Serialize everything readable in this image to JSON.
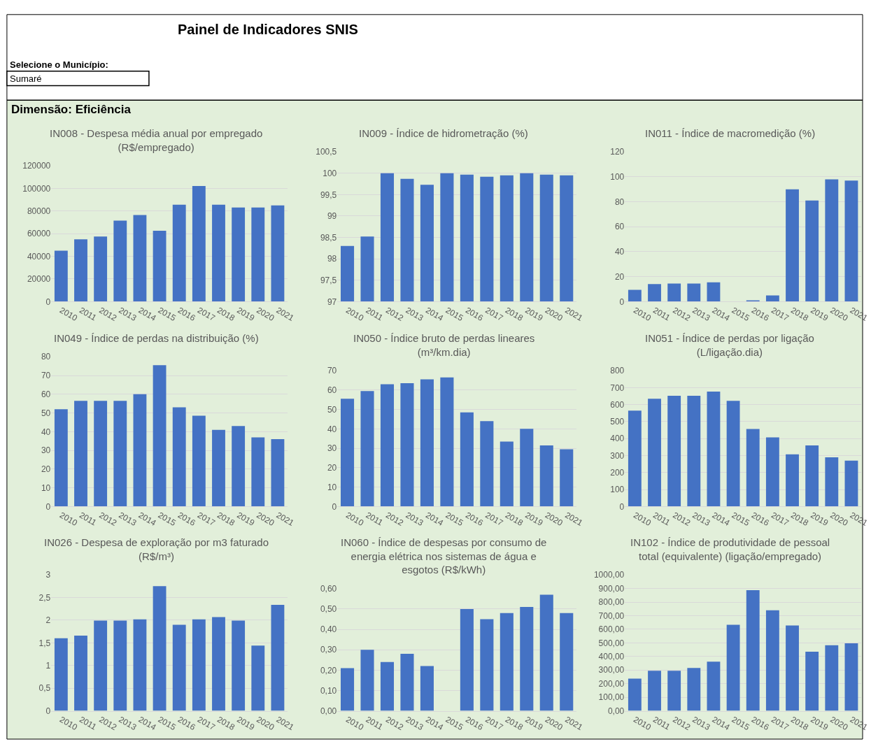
{
  "chart_data": [
    {
      "type": "other",
      "title": "Painel de Indicadores SNIS",
      "annotations": [
        "Selecione o Município:",
        "Sumaré",
        "Dimensão: Eficiência"
      ]
    },
    {
      "type": "bar",
      "title": "IN008 - Despesa média anual por empregado (R$/empregado)",
      "categories": [
        "2010",
        "2011",
        "2012",
        "2013",
        "2014",
        "2015",
        "2016",
        "2017",
        "2018",
        "2019",
        "2020",
        "2021"
      ],
      "color": "#4472c4",
      "values": [
        45000,
        55000,
        57500,
        71500,
        76500,
        62500,
        85500,
        102000,
        85500,
        83000,
        83000,
        85000
      ],
      "ylim": [
        0,
        120000
      ],
      "yticks": [
        0,
        20000,
        40000,
        60000,
        80000,
        100000,
        120000
      ],
      "grid": "y"
    },
    {
      "type": "bar",
      "title": "IN009 - Índice de hidrometração (%)",
      "categories": [
        "2010",
        "2011",
        "2012",
        "2013",
        "2014",
        "2015",
        "2016",
        "2017",
        "2018",
        "2019",
        "2020",
        "2021"
      ],
      "color": "#4472c4",
      "values": [
        98.3,
        98.52,
        100,
        99.87,
        99.73,
        100,
        99.97,
        99.92,
        99.95,
        100,
        99.97,
        99.95
      ],
      "ylim": [
        97,
        100.5
      ],
      "yticks": [
        97,
        {
          "value": 97.5,
          "label": "97,5"
        },
        98,
        {
          "value": 98.5,
          "label": "98,5"
        },
        99,
        {
          "value": 99.5,
          "label": "99,5"
        },
        100,
        {
          "value": 100.5,
          "label": "100,5"
        }
      ],
      "grid": "y"
    },
    {
      "type": "bar",
      "title": "IN011 - Índice de macromedição (%)",
      "categories": [
        "2010",
        "2011",
        "2012",
        "2013",
        "2014",
        "2015",
        "2016",
        "2017",
        "2018",
        "2019",
        "2020",
        "2021"
      ],
      "color": "#4472c4",
      "values": [
        9.5,
        14,
        14.5,
        14.5,
        15.5,
        null,
        1,
        5,
        90,
        81,
        98,
        97
      ],
      "ylim": [
        0,
        120
      ],
      "yticks": [
        0,
        20,
        40,
        60,
        80,
        100,
        120
      ],
      "grid": "y"
    },
    {
      "type": "bar",
      "title": "IN049 - Índice de perdas na distribuição (%)",
      "categories": [
        "2010",
        "2011",
        "2012",
        "2013",
        "2014",
        "2015",
        "2016",
        "2017",
        "2018",
        "2019",
        "2020",
        "2021"
      ],
      "color": "#4472c4",
      "values": [
        52,
        56.5,
        56.5,
        56.5,
        60,
        75.5,
        53,
        48.5,
        41,
        43,
        37,
        36
      ],
      "ylim": [
        0,
        80
      ],
      "yticks": [
        0,
        10,
        20,
        30,
        40,
        50,
        60,
        70,
        80
      ],
      "grid": "y"
    },
    {
      "type": "bar",
      "title": "IN050 - Índice bruto de perdas lineares (m³/km.dia)",
      "categories": [
        "2010",
        "2011",
        "2012",
        "2013",
        "2014",
        "2015",
        "2016",
        "2017",
        "2018",
        "2019",
        "2020",
        "2021"
      ],
      "color": "#4472c4",
      "values": [
        55.5,
        59.5,
        63,
        63.5,
        65.5,
        66.5,
        48.5,
        44,
        33.5,
        40,
        31.5,
        29.5
      ],
      "ylim": [
        0,
        70
      ],
      "yticks": [
        0,
        10,
        20,
        30,
        40,
        50,
        60,
        70
      ],
      "grid": "y"
    },
    {
      "type": "bar",
      "title": "IN051 - Índice de perdas por ligação (L/ligação.dia)",
      "categories": [
        "2010",
        "2011",
        "2012",
        "2013",
        "2014",
        "2015",
        "2016",
        "2017",
        "2018",
        "2019",
        "2020",
        "2021"
      ],
      "color": "#4472c4",
      "values": [
        565,
        635,
        652,
        652,
        677,
        622,
        457,
        407,
        307,
        360,
        290,
        270
      ],
      "ylim": [
        0,
        800
      ],
      "yticks": [
        0,
        100,
        200,
        300,
        400,
        500,
        600,
        700,
        800
      ],
      "grid": "y"
    },
    {
      "type": "bar",
      "title": "IN026 - Despesa de exploração por m3 faturado (R$/m³)",
      "categories": [
        "2010",
        "2011",
        "2012",
        "2013",
        "2014",
        "2015",
        "2016",
        "2017",
        "2018",
        "2019",
        "2020",
        "2021"
      ],
      "color": "#4472c4",
      "values": [
        1.6,
        1.66,
        1.99,
        1.99,
        2.02,
        2.75,
        1.9,
        2.02,
        2.07,
        1.99,
        1.44,
        2.34
      ],
      "ylim": [
        0,
        3
      ],
      "yticks": [
        0,
        {
          "value": 0.5,
          "label": "0,5"
        },
        1,
        {
          "value": 1.5,
          "label": "1,5"
        },
        2,
        {
          "value": 2.5,
          "label": "2,5"
        },
        3
      ],
      "grid": "y"
    },
    {
      "type": "bar",
      "title": "IN060 - Índice de despesas por consumo de energia elétrica nos sistemas de água e esgotos (R$/kWh)",
      "categories": [
        "2010",
        "2011",
        "2012",
        "2013",
        "2014",
        "2015",
        "2016",
        "2017",
        "2018",
        "2019",
        "2020",
        "2021"
      ],
      "color": "#4472c4",
      "values": [
        0.21,
        0.3,
        0.24,
        0.28,
        0.22,
        null,
        0.5,
        0.45,
        0.48,
        0.51,
        0.57,
        0.48
      ],
      "ylim": [
        0,
        0.6
      ],
      "yticks": [
        {
          "value": 0,
          "label": "0,00"
        },
        {
          "value": 0.1,
          "label": "0,10"
        },
        {
          "value": 0.2,
          "label": "0,20"
        },
        {
          "value": 0.3,
          "label": "0,30"
        },
        {
          "value": 0.4,
          "label": "0,40"
        },
        {
          "value": 0.5,
          "label": "0,50"
        },
        {
          "value": 0.6,
          "label": "0,60"
        }
      ],
      "grid": "y"
    },
    {
      "type": "bar",
      "title": "IN102 - Índice de produtividade de pessoal total (equivalente) (ligação/empregado)",
      "categories": [
        "2010",
        "2011",
        "2012",
        "2013",
        "2014",
        "2015",
        "2016",
        "2017",
        "2018",
        "2019",
        "2020",
        "2021"
      ],
      "color": "#4472c4",
      "values": [
        237,
        295,
        295,
        315,
        362,
        633,
        887,
        740,
        628,
        435,
        482,
        497
      ],
      "ylim": [
        0,
        1000
      ],
      "yticks": [
        {
          "value": 0,
          "label": "0,00"
        },
        {
          "value": 100,
          "label": "100,00"
        },
        {
          "value": 200,
          "label": "200,00"
        },
        {
          "value": 300,
          "label": "300,00"
        },
        {
          "value": 400,
          "label": "400,00"
        },
        {
          "value": 500,
          "label": "500,00"
        },
        {
          "value": 600,
          "label": "600,00"
        },
        {
          "value": 700,
          "label": "700,00"
        },
        {
          "value": 800,
          "label": "800,00"
        },
        {
          "value": 900,
          "label": "900,00"
        },
        {
          "value": 1000,
          "label": "1000,00"
        }
      ],
      "grid": "y"
    }
  ]
}
